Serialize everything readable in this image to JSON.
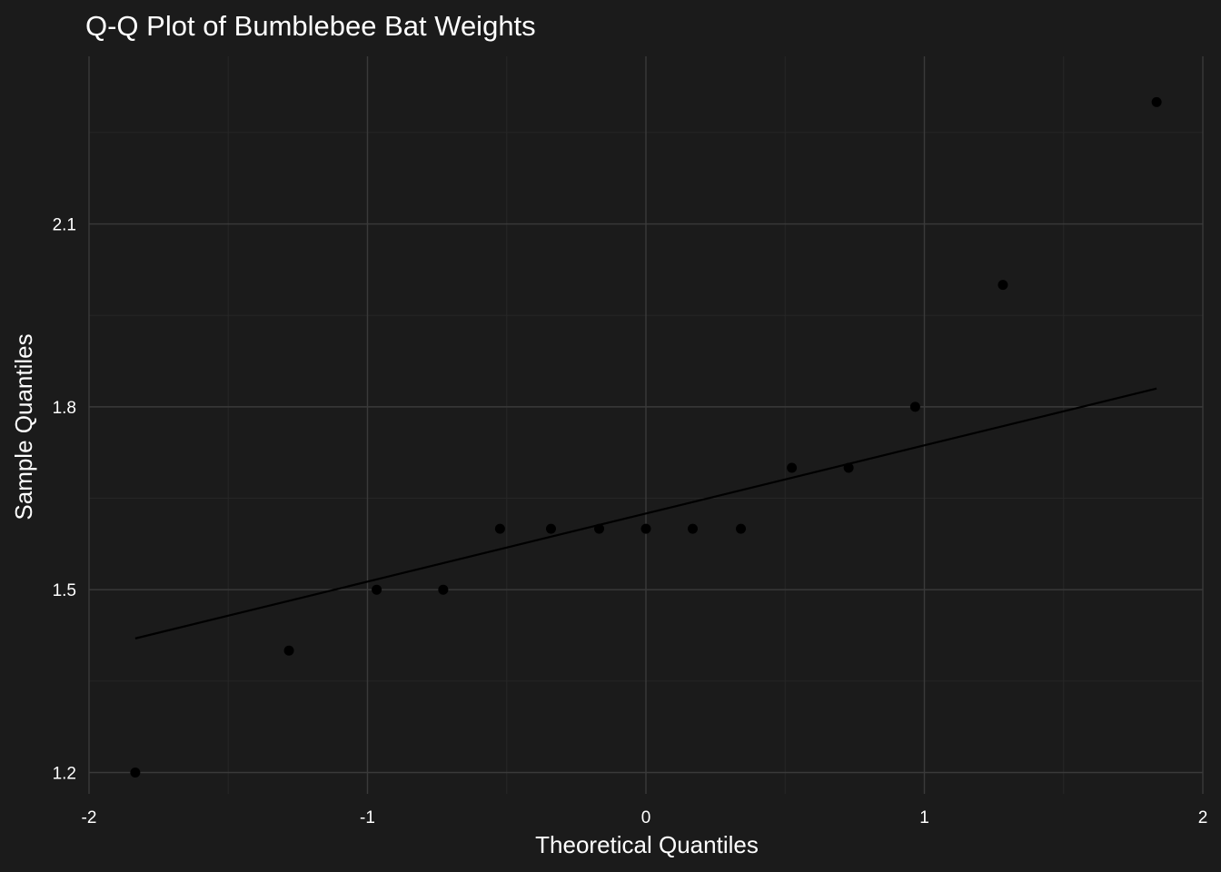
{
  "chart_data": {
    "type": "scatter",
    "title": "Q-Q Plot of Bumblebee Bat Weights",
    "xlabel": "Theoretical Quantiles",
    "ylabel": "Sample Quantiles",
    "xlim": [
      -2,
      2
    ],
    "ylim": [
      1.165,
      2.375
    ],
    "x_ticks": [
      -2,
      -1,
      0,
      1,
      2
    ],
    "x_tick_labels": [
      "-2",
      "-1",
      "0",
      "1",
      "2"
    ],
    "y_ticks": [
      1.2,
      1.5,
      1.8,
      2.1
    ],
    "y_tick_labels": [
      "1.2",
      "1.5",
      "1.8",
      "2.1"
    ],
    "grid": true,
    "legend": "none",
    "series": [
      {
        "points": [
          {
            "x": -1.834,
            "y": 1.2
          },
          {
            "x": -1.282,
            "y": 1.4
          },
          {
            "x": -0.967,
            "y": 1.5
          },
          {
            "x": -0.728,
            "y": 1.5
          },
          {
            "x": -0.524,
            "y": 1.6
          },
          {
            "x": -0.341,
            "y": 1.6
          },
          {
            "x": -0.168,
            "y": 1.6
          },
          {
            "x": 0.0,
            "y": 1.6
          },
          {
            "x": 0.168,
            "y": 1.6
          },
          {
            "x": 0.341,
            "y": 1.6
          },
          {
            "x": 0.524,
            "y": 1.7
          },
          {
            "x": 0.728,
            "y": 1.7
          },
          {
            "x": 0.967,
            "y": 1.8
          },
          {
            "x": 1.282,
            "y": 2.0
          },
          {
            "x": 1.834,
            "y": 2.3
          }
        ]
      }
    ],
    "reference_line": {
      "x": [
        -1.834,
        1.834
      ],
      "y": [
        1.42,
        1.83
      ]
    },
    "colors": {
      "background": "#1b1b1b",
      "points": "#000000",
      "line": "#000000",
      "grid": "#3a3a3a",
      "text": "#ffffff"
    }
  }
}
